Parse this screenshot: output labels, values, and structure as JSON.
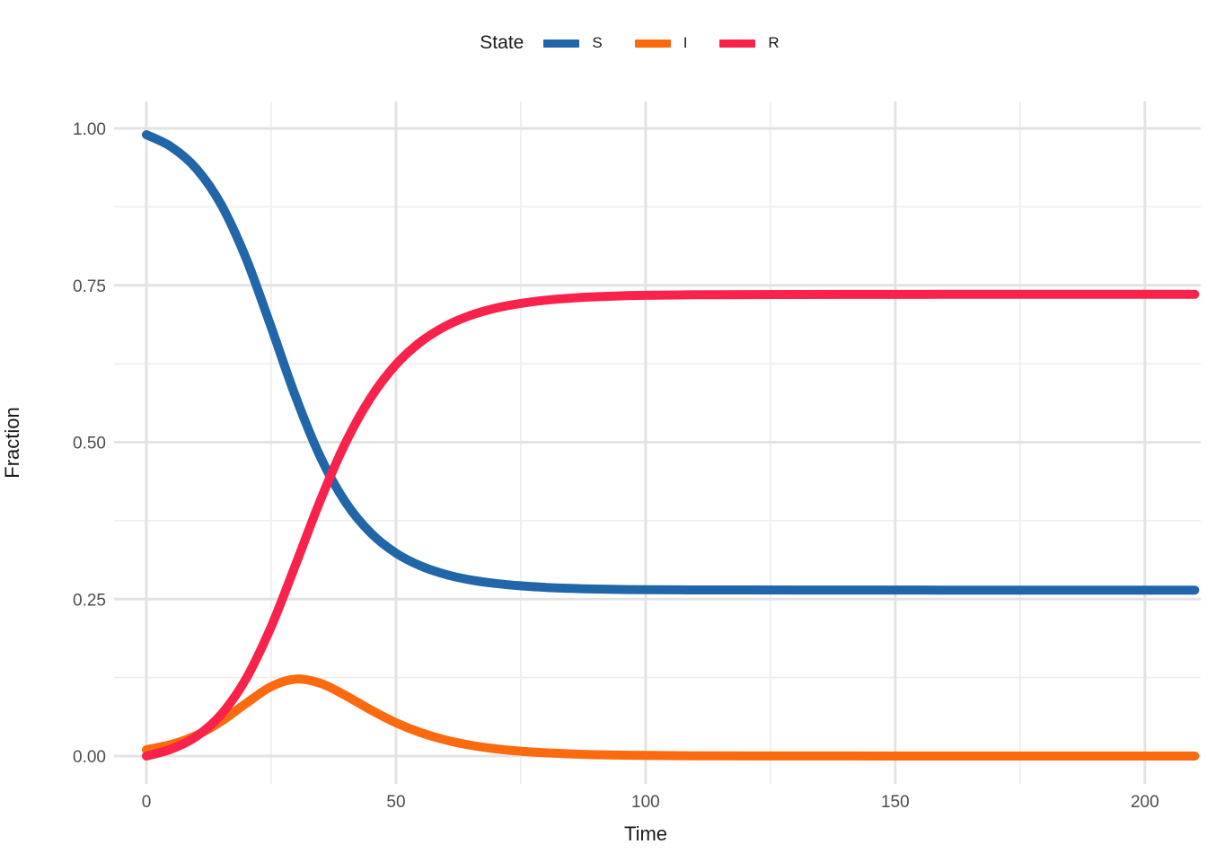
{
  "figure": {
    "background": "#ffffff"
  },
  "legend": {
    "title": "State",
    "items": [
      {
        "label": "S"
      },
      {
        "label": "I"
      },
      {
        "label": "R"
      }
    ]
  },
  "axes": {
    "x": {
      "title": "Time",
      "tick_labels": [
        "0",
        "50",
        "100",
        "150",
        "200"
      ]
    },
    "y": {
      "title": "Fraction",
      "tick_labels": [
        "0.00",
        "0.25",
        "0.50",
        "0.75",
        "1.00"
      ]
    }
  },
  "chart_data": {
    "type": "line",
    "title": "",
    "xlabel": "Time",
    "ylabel": "Fraction",
    "xlim": [
      0,
      210
    ],
    "ylim": [
      0,
      1
    ],
    "x_breaks": [
      0,
      50,
      100,
      150,
      200
    ],
    "x_minor_breaks": [
      25,
      75,
      125,
      175
    ],
    "y_breaks": [
      0,
      0.25,
      0.5,
      0.75,
      1.0
    ],
    "y_minor_breaks": [
      0.125,
      0.375,
      0.625,
      0.875
    ],
    "grid": "on",
    "grid_major_color": "#e3e3e3",
    "grid_minor_color": "#ededed",
    "tick_label_color": "#4d4d4d",
    "legend_position": "top",
    "legend_title": "State",
    "x": [
      0,
      5,
      10,
      15,
      20,
      25,
      30,
      35,
      40,
      45,
      50,
      55,
      60,
      65,
      70,
      75,
      80,
      85,
      90,
      95,
      100,
      110,
      120,
      130,
      140,
      150,
      160,
      170,
      180,
      190,
      200,
      210
    ],
    "series": [
      {
        "name": "S",
        "color": "#2066a8",
        "values": [
          0.99,
          0.9705,
          0.9359,
          0.8783,
          0.7923,
          0.6832,
          0.5702,
          0.474,
          0.4031,
          0.3549,
          0.3233,
          0.3027,
          0.2893,
          0.2806,
          0.2749,
          0.2712,
          0.2687,
          0.2671,
          0.2661,
          0.2654,
          0.265,
          0.2647,
          0.2646,
          0.2645,
          0.2645,
          0.2645,
          0.2644,
          0.2644,
          0.2644,
          0.2644,
          0.2644,
          0.2644
        ]
      },
      {
        "name": "I",
        "color": "#fb6a0f",
        "values": [
          0.01,
          0.0185,
          0.0329,
          0.0553,
          0.084,
          0.1107,
          0.1227,
          0.1155,
          0.096,
          0.0733,
          0.0531,
          0.0372,
          0.0254,
          0.0172,
          0.0115,
          0.0077,
          0.0051,
          0.0034,
          0.0022,
          0.0015,
          0.001,
          0.0004,
          0.0002,
          0.0001,
          0.0001,
          0.0,
          0.0,
          0.0,
          0.0,
          0.0,
          0.0,
          0.0
        ]
      },
      {
        "name": "R",
        "color": "#f8224a",
        "values": [
          0.0,
          0.0111,
          0.0312,
          0.0665,
          0.1237,
          0.2062,
          0.3072,
          0.4105,
          0.5009,
          0.5718,
          0.6237,
          0.6603,
          0.6853,
          0.7023,
          0.7137,
          0.7212,
          0.7263,
          0.7296,
          0.7318,
          0.7332,
          0.7341,
          0.7349,
          0.7352,
          0.7354,
          0.7355,
          0.7355,
          0.7356,
          0.7356,
          0.7356,
          0.7356,
          0.7356,
          0.7356
        ]
      }
    ]
  }
}
